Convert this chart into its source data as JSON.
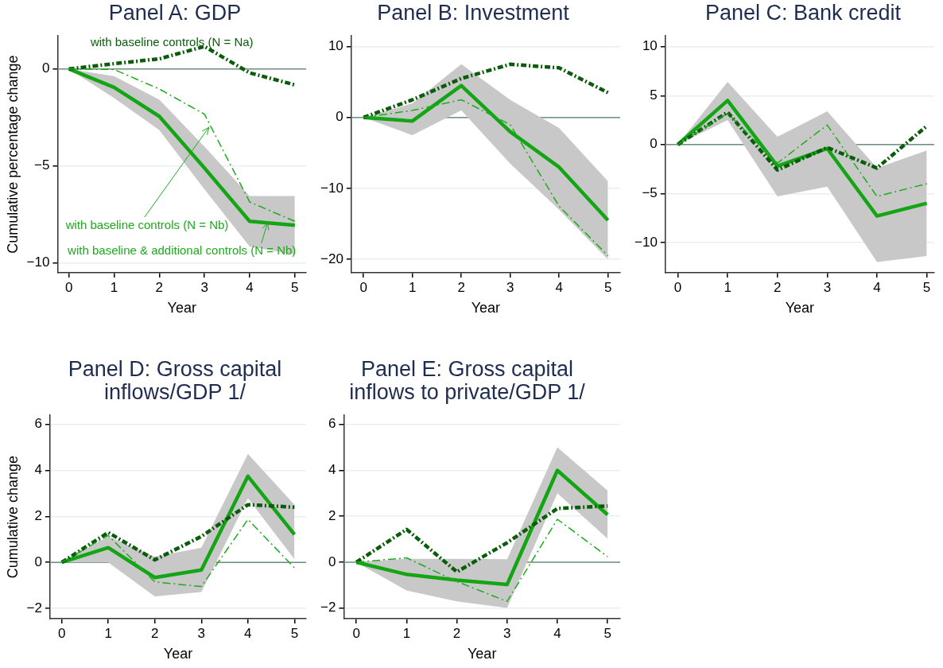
{
  "chart_data": [
    {
      "type": "line",
      "title": "Panel A: GDP",
      "xlabel": "Year",
      "ylabel": "Cumulative percentage change",
      "x": [
        0,
        1,
        2,
        3,
        4,
        5
      ],
      "xlim": [
        -0.25,
        5.25
      ],
      "xticks": [
        0,
        1,
        2,
        3,
        4,
        5
      ],
      "ylim": [
        -10.5,
        1.7
      ],
      "yticks": [
        -10,
        -5,
        0
      ],
      "grid": "y",
      "legend": false,
      "marker": "none",
      "series": [
        {
          "color": "#14a514",
          "line_style": "solid",
          "values": [
            0,
            -0.95,
            -2.44,
            -5.1,
            -7.85,
            -8.05
          ],
          "lower": [
            0,
            -1.5,
            -3.15,
            -6.2,
            -9.15,
            -9.56
          ],
          "upper": [
            0,
            -0.37,
            -1.58,
            -4.0,
            -6.55,
            -6.55
          ]
        },
        {
          "color": "#0a5c0a",
          "line_style": "dashed",
          "values": [
            0,
            0.27,
            0.52,
            1.16,
            -0.2,
            -0.82
          ]
        },
        {
          "color": "#1cab1c",
          "line_style": "dashed",
          "values": [
            0,
            -0.03,
            -1.03,
            -2.33,
            -6.85,
            -7.85
          ]
        }
      ],
      "ref_lines": [
        {
          "axis": "y",
          "value": 0,
          "color": "#6f8f80"
        }
      ],
      "annotations": [
        "with baseline controls (N = Na)",
        {
          "text": "with baseline controls (N = Nb)",
          "x": 3.1,
          "y": -3.0
        },
        {
          "text": "with baseline & additional controls (N = Nb)",
          "x": 4.4,
          "y": -7.9
        }
      ]
    },
    {
      "type": "line",
      "title": "Panel B: Investment",
      "xlabel": "Year",
      "x": [
        0,
        1,
        2,
        3,
        4,
        5
      ],
      "xlim": [
        -0.25,
        5.25
      ],
      "xticks": [
        0,
        1,
        2,
        3,
        4,
        5
      ],
      "ylim": [
        -21.9,
        11.5
      ],
      "yticks": [
        -20,
        -10,
        0,
        10
      ],
      "grid": "y",
      "legend": false,
      "marker": "none",
      "series": [
        {
          "color": "#14a514",
          "line_style": "solid",
          "values": [
            0,
            -0.5,
            4.5,
            -2,
            -7,
            -14.5
          ],
          "lower": [
            0,
            -2.5,
            1,
            -6.5,
            -13,
            -20
          ],
          "upper": [
            0,
            2,
            7.5,
            2.5,
            -1.5,
            -9
          ]
        },
        {
          "color": "#0a5c0a",
          "line_style": "dashed",
          "values": [
            0,
            2.5,
            5.5,
            7.5,
            7,
            3.5
          ]
        },
        {
          "color": "#1cab1c",
          "line_style": "dashed",
          "values": [
            0,
            1,
            2.5,
            -1,
            -12.5,
            -19.5
          ]
        }
      ],
      "ref_lines": [
        {
          "axis": "y",
          "value": 0,
          "color": "#6f8f80"
        }
      ]
    },
    {
      "type": "line",
      "title": "Panel C: Bank credit",
      "xlabel": "Year",
      "x": [
        0,
        1,
        2,
        3,
        4,
        5
      ],
      "xlim": [
        -0.25,
        5.15
      ],
      "xticks": [
        0,
        1,
        2,
        3,
        4,
        5
      ],
      "ylim": [
        -13.1,
        11.1
      ],
      "yticks": [
        -10,
        -5,
        0,
        5,
        10
      ],
      "grid": "y",
      "legend": false,
      "marker": "none",
      "series": [
        {
          "color": "#14a514",
          "line_style": "solid",
          "values": [
            0,
            4.5,
            -2.2,
            -0.4,
            -7.3,
            -6
          ],
          "lower": [
            0,
            2.5,
            -5.3,
            -4.3,
            -12,
            -11.4
          ],
          "upper": [
            0,
            6.4,
            0.8,
            3.4,
            -2.4,
            -0.6
          ]
        },
        {
          "color": "#0a5c0a",
          "line_style": "dashed",
          "values": [
            0,
            3.3,
            -2.6,
            -0.3,
            -2.4,
            1.9
          ]
        },
        {
          "color": "#1cab1c",
          "line_style": "dashed",
          "values": [
            0,
            3.2,
            -1.9,
            2,
            -5.3,
            -4
          ]
        }
      ],
      "ref_lines": [
        {
          "axis": "y",
          "value": 0,
          "color": "#6f8f80"
        }
      ]
    },
    {
      "type": "line",
      "title": "Panel D: Gross capital inflows/GDP 1/",
      "xlabel": "Year",
      "ylabel": "Cumulative change",
      "x": [
        0,
        1,
        2,
        3,
        4,
        5
      ],
      "xlim": [
        -0.25,
        5.25
      ],
      "xticks": [
        0,
        1,
        2,
        3,
        4,
        5
      ],
      "ylim": [
        -2.45,
        6.4
      ],
      "yticks": [
        -2,
        0,
        2,
        4,
        6
      ],
      "grid": "y",
      "legend": false,
      "marker": "none",
      "series": [
        {
          "color": "#14a514",
          "line_style": "solid",
          "values": [
            0,
            0.64,
            -0.66,
            -0.33,
            3.75,
            1.21
          ],
          "lower": [
            0,
            0,
            -1.48,
            -1.29,
            2.79,
            0.14
          ],
          "upper": [
            0,
            1.13,
            0.25,
            0.64,
            4.72,
            2.51
          ]
        },
        {
          "color": "#0a5c0a",
          "line_style": "dashed",
          "values": [
            0,
            1.3,
            0.11,
            1.13,
            2.51,
            2.4
          ]
        },
        {
          "color": "#1cab1c",
          "line_style": "dashed",
          "values": [
            0,
            1.17,
            -0.85,
            -1.05,
            1.87,
            -0.24
          ]
        }
      ],
      "ref_lines": [
        {
          "axis": "y",
          "value": 0,
          "color": "#6f8f80"
        }
      ]
    },
    {
      "type": "line",
      "title": "Panel E: Gross capital inflows to private/GDP 1/",
      "xlabel": "Year",
      "x": [
        0,
        1,
        2,
        3,
        4,
        5
      ],
      "xlim": [
        -0.25,
        5.25
      ],
      "xticks": [
        0,
        1,
        2,
        3,
        4,
        5
      ],
      "ylim": [
        -2.46,
        6.4
      ],
      "yticks": [
        -2,
        0,
        2,
        4,
        6
      ],
      "grid": "y",
      "legend": false,
      "marker": "none",
      "series": [
        {
          "color": "#14a514",
          "line_style": "solid",
          "values": [
            0,
            -0.53,
            -0.78,
            -0.97,
            4.0,
            2.07
          ],
          "lower": [
            0,
            -1.23,
            -1.71,
            -1.99,
            3.0,
            1.02
          ],
          "upper": [
            0,
            0.15,
            0.15,
            0.13,
            5.0,
            3.12
          ]
        },
        {
          "color": "#0a5c0a",
          "line_style": "dashed",
          "values": [
            0,
            1.43,
            -0.42,
            0.85,
            2.34,
            2.45
          ]
        },
        {
          "color": "#1cab1c",
          "line_style": "dashed",
          "values": [
            0,
            0.19,
            -0.84,
            -1.71,
            1.87,
            0.24
          ]
        }
      ],
      "ref_lines": [
        {
          "axis": "y",
          "value": 0,
          "color": "#6f8f80"
        }
      ]
    }
  ]
}
